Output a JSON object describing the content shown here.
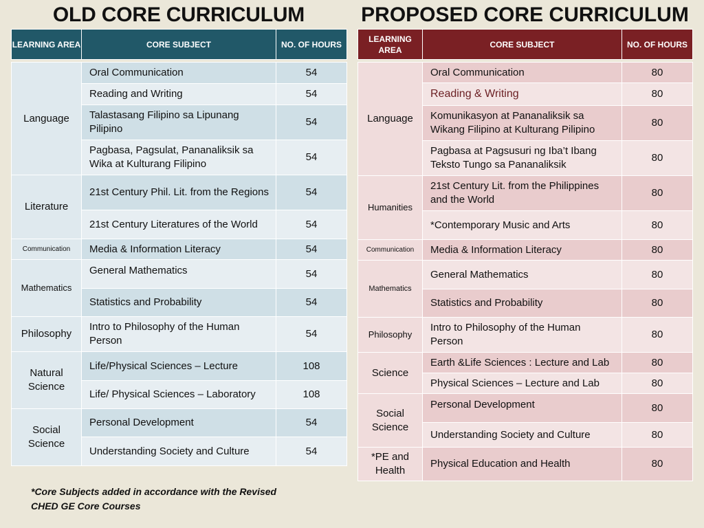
{
  "old": {
    "title": "OLD CORE CURRICULUM",
    "headers": {
      "area": "LEARNING AREA",
      "subject": "CORE SUBJECT",
      "hours": "NO. OF HOURS"
    },
    "groups": [
      {
        "area": "Language",
        "subjects": [
          {
            "name": "Oral Communication",
            "hours": "54"
          },
          {
            "name": "Reading and Writing",
            "hours": "54"
          },
          {
            "name": "Talastasang Filipino sa Lipunang Pilipino",
            "hours": "54"
          },
          {
            "name": "Pagbasa, Pagsulat, Pananaliksik sa Wika at Kulturang Filipino",
            "hours": "54"
          }
        ]
      },
      {
        "area": "Literature",
        "subjects": [
          {
            "name": "21st Century Phil. Lit. from the Regions",
            "hours": "54"
          },
          {
            "name": "21st Century Literatures of the World",
            "hours": "54"
          }
        ]
      },
      {
        "area": "Communication",
        "subjects": [
          {
            "name": "Media & Information Literacy",
            "hours": "54"
          }
        ]
      },
      {
        "area": "Mathematics",
        "subjects": [
          {
            "name": "General Mathematics",
            "hours": "54"
          },
          {
            "name": "Statistics and Probability",
            "hours": "54"
          }
        ]
      },
      {
        "area": "Philosophy",
        "subjects": [
          {
            "name": "Intro to Philosophy of the Human Person",
            "hours": "54"
          }
        ]
      },
      {
        "area": "Natural Science",
        "subjects": [
          {
            "name": "Life/Physical Sciences – Lecture",
            "hours": "108"
          },
          {
            "name": "Life/ Physical Sciences – Laboratory",
            "hours": "108"
          }
        ]
      },
      {
        "area": "Social Science",
        "subjects": [
          {
            "name": "Personal Development",
            "hours": "54"
          },
          {
            "name": "Understanding Society and Culture",
            "hours": "54"
          }
        ]
      }
    ]
  },
  "proposed": {
    "title": "PROPOSED CORE CURRICULUM",
    "headers": {
      "area": "LEARNING AREA",
      "subject": "CORE SUBJECT",
      "hours": "NO. OF HOURS"
    },
    "groups": [
      {
        "area": "Language",
        "subjects": [
          {
            "name": "Oral Communication",
            "hours": "80"
          },
          {
            "name": "Reading & Writing",
            "hours": "80"
          },
          {
            "name": "Komunikasyon at Pananaliksik sa Wikang Filipino at Kulturang Pilipino",
            "hours": "80"
          },
          {
            "name": "Pagbasa at Pagsusuri ng Iba’t Ibang Teksto Tungo sa Pananaliksik",
            "hours": "80"
          }
        ]
      },
      {
        "area": "Humanities",
        "subjects": [
          {
            "name": "21st Century Lit. from the Philippines and the World",
            "hours": "80"
          },
          {
            "name": "*Contemporary Music and Arts",
            "hours": "80"
          }
        ]
      },
      {
        "area": "Communication",
        "subjects": [
          {
            "name": "Media & Information Literacy",
            "hours": "80"
          }
        ]
      },
      {
        "area": "Mathematics",
        "subjects": [
          {
            "name": "General Mathematics",
            "hours": "80"
          },
          {
            "name": "Statistics and Probability",
            "hours": "80"
          }
        ]
      },
      {
        "area": "Philosophy",
        "subjects": [
          {
            "name": "Intro to Philosophy of the Human Person",
            "hours": "80"
          }
        ]
      },
      {
        "area": "Science",
        "subjects": [
          {
            "name": "Earth &Life Sciences : Lecture and Lab",
            "hours": "80"
          },
          {
            "name": "Physical Sciences – Lecture and Lab",
            "hours": "80"
          }
        ]
      },
      {
        "area": "Social Science",
        "subjects": [
          {
            "name": "Personal Development",
            "hours": "80"
          },
          {
            "name": "Understanding Society and Culture",
            "hours": "80"
          }
        ]
      },
      {
        "area": "*PE and Health",
        "subjects": [
          {
            "name": "Physical Education and Health",
            "hours": "80"
          }
        ]
      }
    ]
  },
  "footnote": {
    "line1": "*Core Subjects added in accordance with the Revised",
    "line2": "CHED GE Core Courses"
  }
}
